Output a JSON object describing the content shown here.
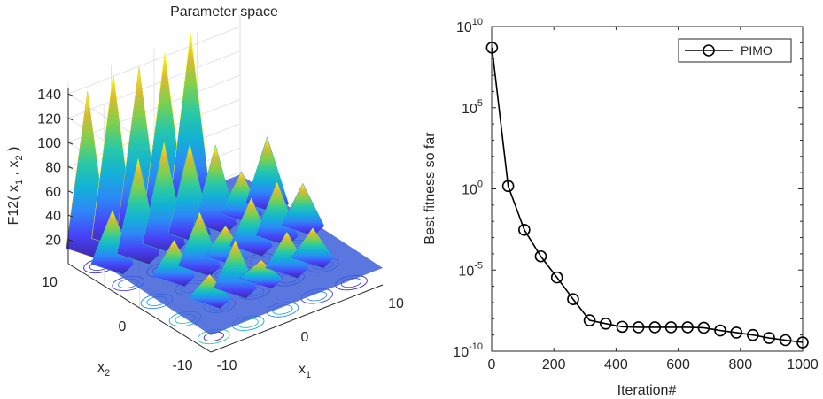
{
  "left": {
    "title": "Parameter space",
    "zlabel_prefix": "F12( x",
    "zlabel_sub1": "1",
    "zlabel_mid": " ,  x",
    "zlabel_sub2": "2",
    "zlabel_suffix": " )",
    "xlabel": "x",
    "xlabel_sub": "1",
    "ylabel": "x",
    "ylabel_sub": "2",
    "x_ticks": [
      "-10",
      "0",
      "10"
    ],
    "y_ticks": [
      "10",
      "0",
      "-10"
    ],
    "z_ticks": [
      "20",
      "40",
      "60",
      "80",
      "100",
      "120",
      "140"
    ],
    "colormap": [
      "#3e26a8",
      "#4743f8",
      "#2e87f7",
      "#12b1d6",
      "#2ac9a5",
      "#7cd04f",
      "#d8ba34",
      "#f9fb15"
    ]
  },
  "chart_data": {
    "type": "line",
    "xlabel": "Iteration#",
    "ylabel": "Best fitness so far",
    "xlim": [
      0,
      1000
    ],
    "ylim": [
      1e-10,
      10000000000.0
    ],
    "yscale": "log",
    "x_ticks": [
      "0",
      "200",
      "400",
      "600",
      "800",
      "1000"
    ],
    "y_ticks": [
      {
        "base": "10",
        "exp": "-10"
      },
      {
        "base": "10",
        "exp": "-5"
      },
      {
        "base": "10",
        "exp": "0"
      },
      {
        "base": "10",
        "exp": "5"
      },
      {
        "base": "10",
        "exp": "10"
      }
    ],
    "legend_position": "top-right",
    "series": [
      {
        "name": "PIMO",
        "color": "#000000",
        "marker": "circle",
        "x": [
          1,
          53,
          105,
          158,
          210,
          262,
          315,
          367,
          420,
          472,
          525,
          577,
          630,
          682,
          735,
          787,
          840,
          892,
          945,
          1000
        ],
        "y": [
          500000000.0,
          1.5,
          0.003,
          7e-05,
          3.5e-06,
          1.6e-07,
          8e-09,
          5e-09,
          3.2e-09,
          3e-09,
          3e-09,
          3e-09,
          3e-09,
          2.8e-09,
          1.9e-09,
          1.4e-09,
          1e-09,
          6.5e-10,
          4.8e-10,
          3.5e-10
        ]
      }
    ]
  }
}
